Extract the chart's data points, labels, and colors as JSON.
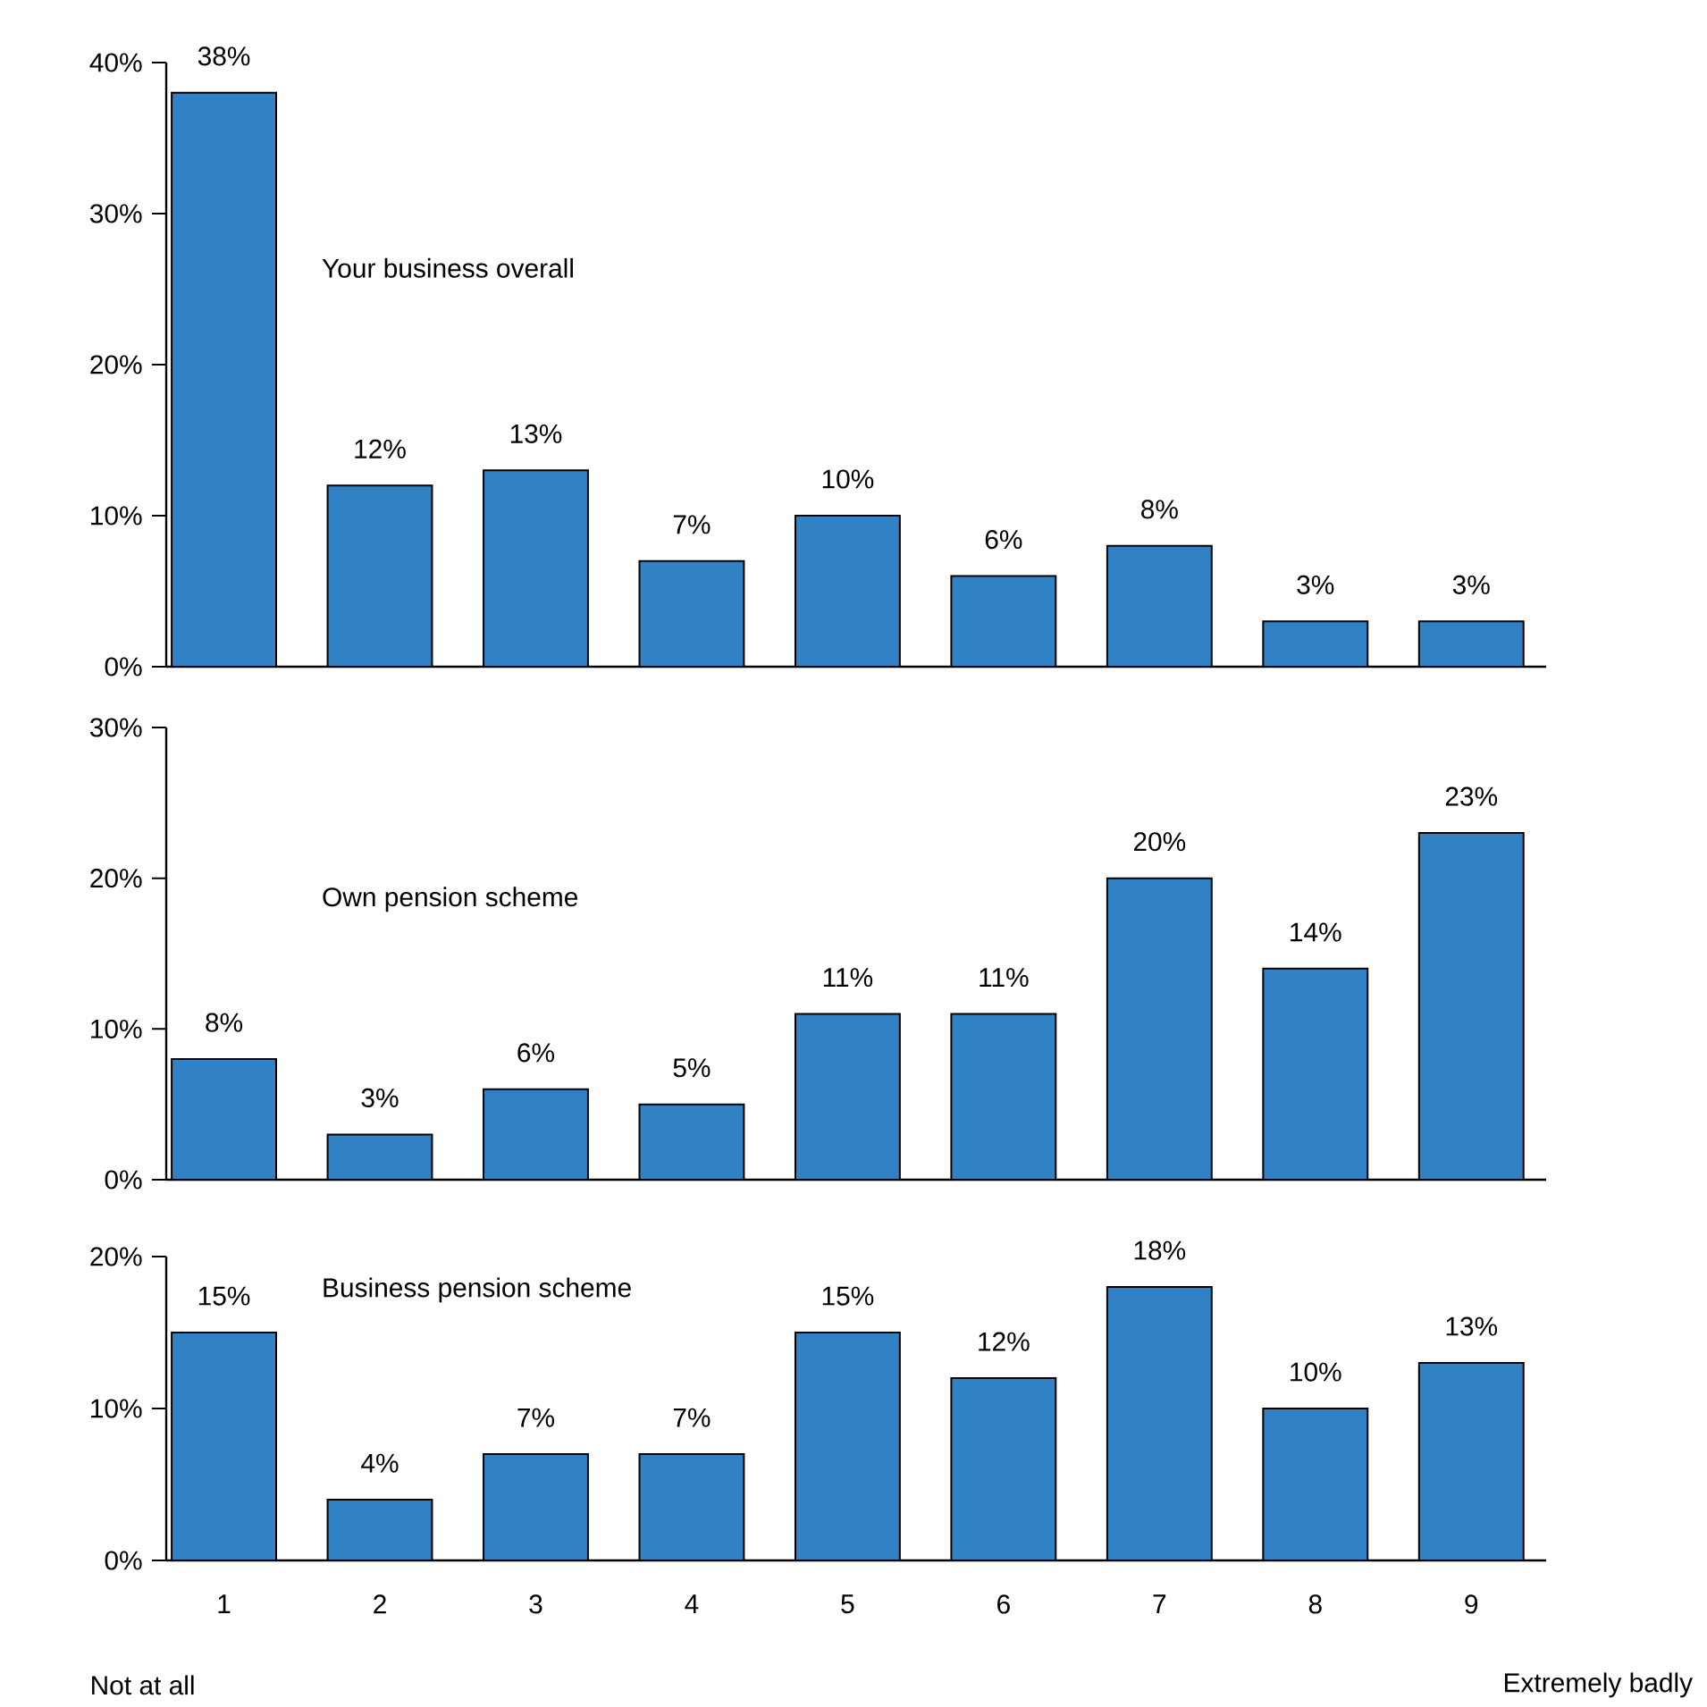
{
  "chart_data": [
    {
      "type": "bar",
      "title": "Your business overall",
      "categories": [
        "1",
        "2",
        "3",
        "4",
        "5",
        "6",
        "7",
        "8",
        "9"
      ],
      "values": [
        38,
        12,
        13,
        7,
        10,
        6,
        8,
        3,
        3
      ],
      "value_labels": [
        "38%",
        "12%",
        "13%",
        "7%",
        "10%",
        "6%",
        "8%",
        "3%",
        "3%"
      ],
      "color": "#3182c4",
      "ylim": [
        0,
        40
      ],
      "yticks": [
        {
          "value": 0,
          "label": "0%"
        },
        {
          "value": 10,
          "label": "10%"
        },
        {
          "value": 20,
          "label": "20%"
        },
        {
          "value": 30,
          "label": "30%"
        },
        {
          "value": 40,
          "label": "40%"
        }
      ],
      "tick_labels": "y"
    },
    {
      "type": "bar",
      "title": "Own pension scheme",
      "categories": [
        "1",
        "2",
        "3",
        "4",
        "5",
        "6",
        "7",
        "8",
        "9"
      ],
      "values": [
        8,
        3,
        6,
        5,
        11,
        11,
        20,
        14,
        23
      ],
      "value_labels": [
        "8%",
        "3%",
        "6%",
        "5%",
        "11%",
        "11%",
        "20%",
        "14%",
        "23%"
      ],
      "color": "#3182c4",
      "ylim": [
        0,
        30
      ],
      "yticks": [
        {
          "value": 0,
          "label": "0%"
        },
        {
          "value": 10,
          "label": "10%"
        },
        {
          "value": 20,
          "label": "20%"
        },
        {
          "value": 30,
          "label": "30%"
        }
      ],
      "tick_labels": "y"
    },
    {
      "type": "bar",
      "title": "Business pension scheme",
      "categories": [
        "1",
        "2",
        "3",
        "4",
        "5",
        "6",
        "7",
        "8",
        "9"
      ],
      "values": [
        15,
        4,
        7,
        7,
        15,
        12,
        18,
        10,
        13
      ],
      "value_labels": [
        "15%",
        "4%",
        "7%",
        "7%",
        "15%",
        "12%",
        "18%",
        "10%",
        "13%"
      ],
      "color": "#3182c4",
      "ylim": [
        0,
        20
      ],
      "yticks": [
        {
          "value": 0,
          "label": "0%"
        },
        {
          "value": 10,
          "label": "10%"
        },
        {
          "value": 20,
          "label": "20%"
        }
      ],
      "annotations": [
        "Not at all",
        "Extremely badly"
      ]
    }
  ]
}
